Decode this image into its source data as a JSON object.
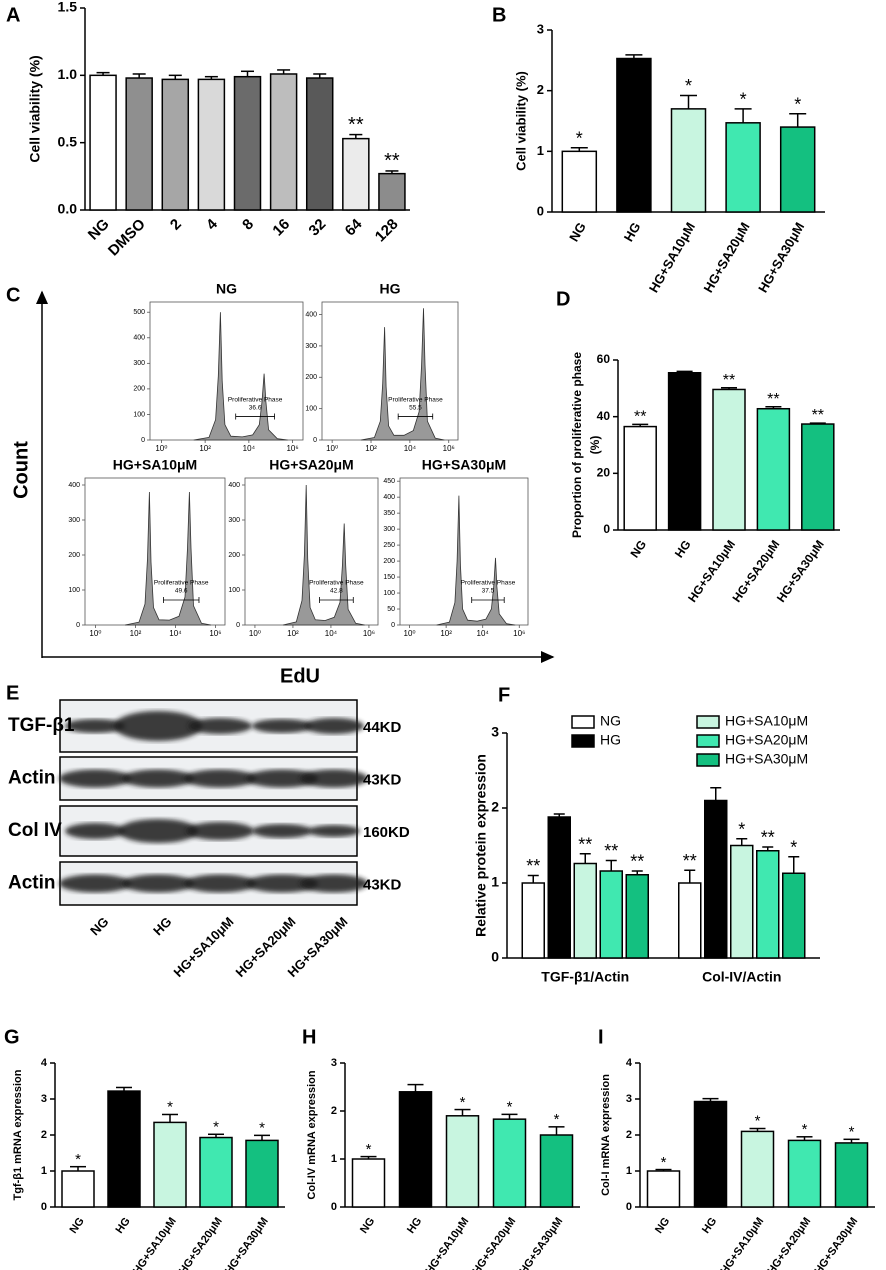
{
  "chart_data": [
    {
      "type": "bar",
      "panel": "A",
      "ylabel": "Cell viability (%)",
      "categories": [
        "NG",
        "DMSO",
        "2",
        "4",
        "8",
        "16",
        "32",
        "64",
        "128"
      ],
      "values": [
        1.0,
        0.98,
        0.97,
        0.97,
        0.99,
        1.01,
        0.98,
        0.53,
        0.27
      ],
      "errors": [
        0.02,
        0.03,
        0.03,
        0.02,
        0.04,
        0.03,
        0.03,
        0.03,
        0.02
      ],
      "annotations": [
        null,
        null,
        null,
        null,
        null,
        null,
        null,
        "**",
        "**"
      ],
      "colors": [
        "#ffffff",
        "#8f8f8f",
        "#a6a6a6",
        "#d9d9d9",
        "#6b6b6b",
        "#bdbdbd",
        "#595959",
        "#ebebeb",
        "#8c8c8c"
      ],
      "ylim": [
        0,
        1.5
      ],
      "yticks": [
        {
          "value": 0,
          "label": "0.0"
        },
        0.5,
        {
          "value": 1,
          "label": "1.0"
        },
        1.5
      ]
    },
    {
      "type": "bar",
      "panel": "B",
      "ylabel": "Cell viability (%)",
      "categories": [
        "NG",
        "HG",
        "HG+SA10μM",
        "HG+SA20μM",
        "HG+SA30μM"
      ],
      "values": [
        1.0,
        2.53,
        1.7,
        1.47,
        1.4
      ],
      "errors": [
        0.06,
        0.06,
        0.22,
        0.23,
        0.22
      ],
      "annotations": [
        "*",
        null,
        "*",
        "*",
        "*"
      ],
      "colors": [
        "#ffffff",
        "#000000",
        "#c8f5e0",
        "#40e8b0",
        "#14c080"
      ],
      "ylim": [
        0,
        3
      ],
      "yticks": [
        0,
        1,
        2,
        3
      ]
    },
    {
      "type": "flow",
      "panel": "C",
      "xlabel": "EdU",
      "ylabel": "Count",
      "color": "#999999",
      "plots": [
        {
          "title": "NG",
          "log_x": true,
          "xlim": [
            0.3,
            3000000
          ],
          "xticks": [
            {
              "value": 1,
              "label": "10⁰"
            },
            {
              "value": 100,
              "label": "10²"
            },
            {
              "value": 10000,
              "label": "10⁴"
            },
            {
              "value": 1000000,
              "label": "10⁶"
            }
          ],
          "x": [
            30,
            150,
            300,
            400,
            500,
            600,
            800,
            1500,
            5000,
            15000,
            30000,
            40000,
            50000,
            60000,
            80000,
            200000,
            600000
          ],
          "values": [
            0,
            10,
            80,
            250,
            500,
            230,
            60,
            15,
            12,
            20,
            60,
            150,
            260,
            150,
            40,
            5,
            0
          ],
          "ylim": [
            0,
            540
          ],
          "yticks": [
            0,
            100,
            200,
            300,
            400,
            500
          ],
          "gate": [
            2500,
            150000
          ],
          "gate_label": "Proliferative Phase",
          "gate_value": 36.6
        },
        {
          "title": "HG",
          "log_x": true,
          "xlim": [
            0.3,
            3000000
          ],
          "xticks": [
            {
              "value": 1,
              "label": "10⁰"
            },
            {
              "value": 100,
              "label": "10²"
            },
            {
              "value": 10000,
              "label": "10⁴"
            },
            {
              "value": 1000000,
              "label": "10⁶"
            }
          ],
          "x": [
            30,
            150,
            300,
            400,
            500,
            600,
            800,
            1500,
            5000,
            15000,
            30000,
            40000,
            50000,
            60000,
            80000,
            200000,
            600000
          ],
          "values": [
            0,
            8,
            60,
            180,
            360,
            170,
            45,
            15,
            15,
            30,
            90,
            240,
            420,
            240,
            60,
            6,
            0
          ],
          "ylim": [
            0,
            440
          ],
          "yticks": [
            0,
            100,
            200,
            300,
            400
          ],
          "gate": [
            2500,
            150000
          ],
          "gate_label": "Proliferative Phase",
          "gate_value": 55.5
        },
        {
          "title": "HG+SA10μM",
          "log_x": true,
          "xlim": [
            0.3,
            3000000
          ],
          "xticks": [
            {
              "value": 1,
              "label": "10⁰"
            },
            {
              "value": 100,
              "label": "10²"
            },
            {
              "value": 10000,
              "label": "10⁴"
            },
            {
              "value": 1000000,
              "label": "10⁶"
            }
          ],
          "x": [
            30,
            150,
            300,
            400,
            500,
            600,
            800,
            1500,
            5000,
            15000,
            30000,
            40000,
            50000,
            60000,
            80000,
            200000,
            600000
          ],
          "values": [
            0,
            8,
            60,
            190,
            380,
            180,
            50,
            15,
            14,
            25,
            80,
            220,
            380,
            220,
            55,
            5,
            0
          ],
          "ylim": [
            0,
            420
          ],
          "yticks": [
            0,
            100,
            200,
            300,
            400
          ],
          "gate": [
            2500,
            150000
          ],
          "gate_label": "Proliferative Phase",
          "gate_value": 49.6
        },
        {
          "title": "HG+SA20μM",
          "log_x": true,
          "xlim": [
            0.3,
            3000000
          ],
          "xticks": [
            {
              "value": 1,
              "label": "10⁰"
            },
            {
              "value": 100,
              "label": "10²"
            },
            {
              "value": 10000,
              "label": "10⁴"
            },
            {
              "value": 1000000,
              "label": "10⁶"
            }
          ],
          "x": [
            30,
            150,
            300,
            400,
            500,
            600,
            800,
            1500,
            5000,
            15000,
            30000,
            40000,
            50000,
            60000,
            80000,
            200000,
            600000
          ],
          "values": [
            0,
            9,
            70,
            200,
            400,
            190,
            50,
            15,
            13,
            22,
            65,
            170,
            290,
            170,
            45,
            5,
            0
          ],
          "ylim": [
            0,
            420
          ],
          "yticks": [
            0,
            100,
            200,
            300,
            400
          ],
          "gate": [
            2500,
            150000
          ],
          "gate_label": "Proliferative Phase",
          "gate_value": 42.8
        },
        {
          "title": "HG+SA30μM",
          "log_x": true,
          "xlim": [
            0.3,
            3000000
          ],
          "xticks": [
            {
              "value": 1,
              "label": "10⁰"
            },
            {
              "value": 100,
              "label": "10²"
            },
            {
              "value": 10000,
              "label": "10⁴"
            },
            {
              "value": 1000000,
              "label": "10⁶"
            }
          ],
          "x": [
            30,
            150,
            300,
            400,
            500,
            600,
            800,
            1500,
            5000,
            15000,
            30000,
            40000,
            50000,
            60000,
            80000,
            200000,
            600000
          ],
          "values": [
            0,
            9,
            70,
            200,
            405,
            190,
            50,
            15,
            12,
            18,
            50,
            120,
            210,
            120,
            35,
            4,
            0
          ],
          "ylim": [
            0,
            460
          ],
          "yticks": [
            0,
            50,
            100,
            150,
            200,
            250,
            300,
            350,
            400,
            450
          ],
          "gate": [
            2500,
            150000
          ],
          "gate_label": "Proliferative Phase",
          "gate_value": 37.5
        }
      ]
    },
    {
      "type": "bar",
      "panel": "D",
      "ylabel": [
        "Proportion of proliferative phase",
        "(%)"
      ],
      "categories": [
        "NG",
        "HG",
        "HG+SA10μM",
        "HG+SA20μM",
        "HG+SA30μM"
      ],
      "values": [
        36.5,
        55.5,
        49.6,
        42.8,
        37.4
      ],
      "errors": [
        0.8,
        0.5,
        0.6,
        0.7,
        0.3
      ],
      "annotations": [
        "**",
        null,
        "**",
        "**",
        "**"
      ],
      "colors": [
        "#ffffff",
        "#000000",
        "#c8f5e0",
        "#40e8b0",
        "#14c080"
      ],
      "ylim": [
        0,
        60
      ],
      "yticks": [
        0,
        20,
        40,
        60
      ]
    },
    {
      "type": "bar",
      "panel": "F",
      "ylabel": "Relative protein expression",
      "categories": [
        "TGF-β1/Actin",
        "Col-IV/Actin"
      ],
      "series": [
        {
          "name": "NG",
          "color": "#ffffff",
          "values": [
            1.0,
            1.0
          ],
          "errors": [
            0.1,
            0.17
          ],
          "annotations": [
            "**",
            "**"
          ]
        },
        {
          "name": "HG",
          "color": "#000000",
          "values": [
            1.88,
            2.1
          ],
          "errors": [
            0.04,
            0.17
          ],
          "annotations": [
            null,
            null
          ]
        },
        {
          "name": "HG+SA10μM",
          "color": "#c8f5e0",
          "values": [
            1.26,
            1.5
          ],
          "errors": [
            0.13,
            0.09
          ],
          "annotations": [
            "**",
            "*"
          ]
        },
        {
          "name": "HG+SA20μM",
          "color": "#40e8b0",
          "values": [
            1.16,
            1.43
          ],
          "errors": [
            0.14,
            0.05
          ],
          "annotations": [
            "**",
            "**"
          ]
        },
        {
          "name": "HG+SA30μM",
          "color": "#14c080",
          "values": [
            1.11,
            1.13
          ],
          "errors": [
            0.05,
            0.22
          ],
          "annotations": [
            "**",
            "*"
          ]
        }
      ],
      "ylim": [
        0,
        3
      ],
      "yticks": [
        0,
        1,
        2,
        3
      ]
    },
    {
      "type": "bar",
      "panel": "G",
      "ylabel": "Tgf-β1 mRNA expression",
      "categories": [
        "NG",
        "HG",
        "HG+SA10μM",
        "HG+SA20μM",
        "HG+SA30μM"
      ],
      "values": [
        1.0,
        3.22,
        2.35,
        1.93,
        1.85
      ],
      "errors": [
        0.12,
        0.1,
        0.22,
        0.09,
        0.14
      ],
      "annotations": [
        "*",
        null,
        "*",
        "*",
        "*"
      ],
      "colors": [
        "#ffffff",
        "#000000",
        "#c8f5e0",
        "#40e8b0",
        "#14c080"
      ],
      "ylim": [
        0,
        4
      ],
      "yticks": [
        0,
        1,
        2,
        3,
        4
      ]
    },
    {
      "type": "bar",
      "panel": "H",
      "ylabel": "Col-IV mRNA expression",
      "categories": [
        "NG",
        "HG",
        "HG+SA10μM",
        "HG+SA20μM",
        "HG+SA30μM"
      ],
      "values": [
        1.0,
        2.4,
        1.9,
        1.83,
        1.5
      ],
      "errors": [
        0.05,
        0.15,
        0.13,
        0.1,
        0.17
      ],
      "annotations": [
        "*",
        null,
        "*",
        "*",
        "*"
      ],
      "colors": [
        "#ffffff",
        "#000000",
        "#c8f5e0",
        "#40e8b0",
        "#14c080"
      ],
      "ylim": [
        0,
        3
      ],
      "yticks": [
        0,
        1,
        2,
        3
      ]
    },
    {
      "type": "bar",
      "panel": "I",
      "ylabel": "Col-I mRNA expression",
      "categories": [
        "NG",
        "HG",
        "HG+SA10μM",
        "HG+SA20μM",
        "HG+SA30μM"
      ],
      "values": [
        1.0,
        2.93,
        2.1,
        1.85,
        1.78
      ],
      "errors": [
        0.04,
        0.08,
        0.08,
        0.1,
        0.1
      ],
      "annotations": [
        "*",
        null,
        "*",
        "*",
        "*"
      ],
      "colors": [
        "#ffffff",
        "#000000",
        "#c8f5e0",
        "#40e8b0",
        "#14c080"
      ],
      "ylim": [
        0,
        4
      ],
      "yticks": [
        0,
        1,
        2,
        3,
        4
      ]
    }
  ],
  "blot": {
    "panel": "E",
    "rows": [
      {
        "label": "TGF-β1",
        "size": "44KD"
      },
      {
        "label": "Actin",
        "size": "43KD"
      },
      {
        "label": "Col IV",
        "size": "160KD"
      },
      {
        "label": "Actin",
        "size": "43KD"
      }
    ],
    "lanes": [
      "NG",
      "HG",
      "HG+SA10μM",
      "HG+SA20μM",
      "HG+SA30μM"
    ]
  }
}
